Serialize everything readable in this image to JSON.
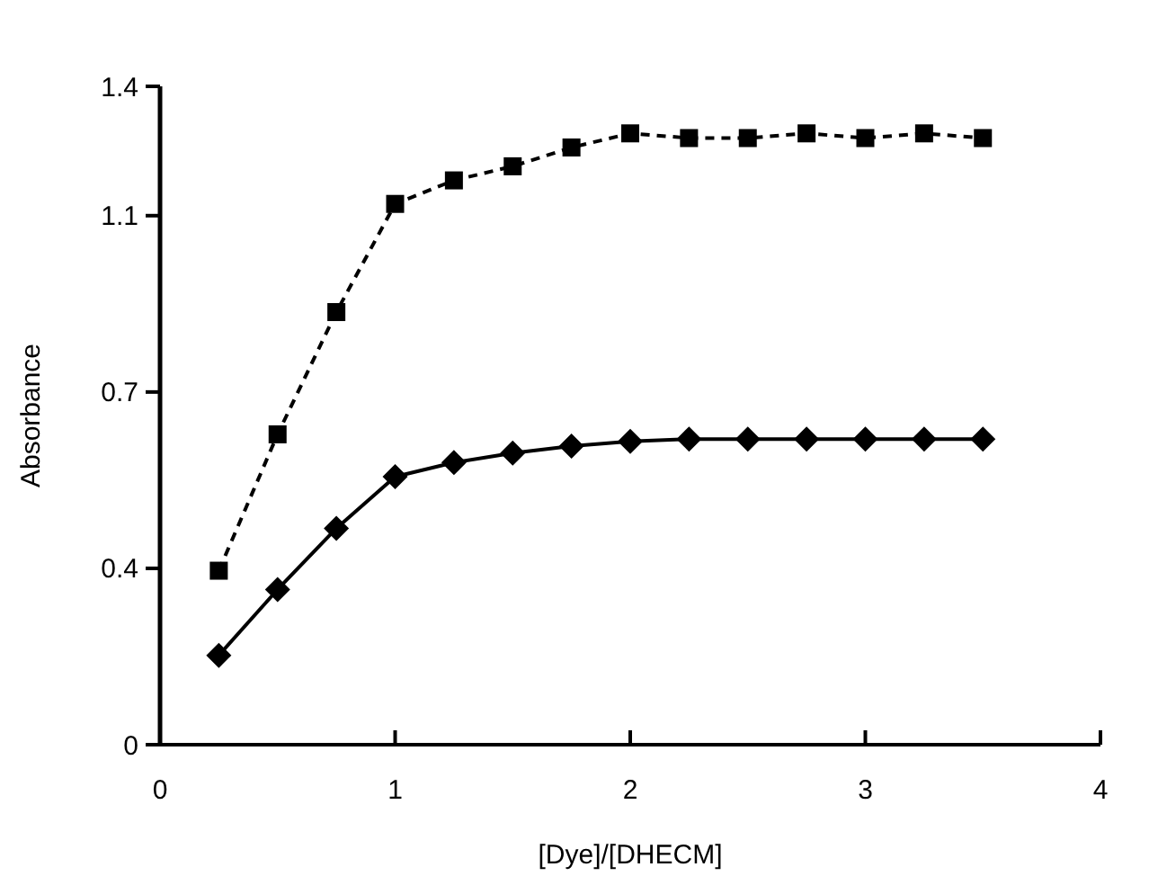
{
  "chart_data": {
    "type": "line",
    "xlabel": "[Dye]/[DHECM]",
    "ylabel": "Absorbance",
    "x": [
      0.25,
      0.5,
      0.75,
      1,
      1.25,
      1.5,
      1.75,
      2,
      2.25,
      2.5,
      2.75,
      3,
      3.25,
      3.5
    ],
    "series": [
      {
        "color": "#000000",
        "marker": "square",
        "line_style": "dashed",
        "values": [
          0.37,
          0.66,
          0.92,
          1.15,
          1.2,
          1.23,
          1.27,
          1.3,
          1.29,
          1.29,
          1.3,
          1.29,
          1.3,
          1.29
        ]
      },
      {
        "color": "#000000",
        "marker": "diamond",
        "line_style": "solid",
        "values": [
          0.19,
          0.33,
          0.46,
          0.57,
          0.6,
          0.62,
          0.635,
          0.645,
          0.65,
          0.65,
          0.65,
          0.65,
          0.65,
          0.65
        ]
      }
    ],
    "xlim": [
      0,
      4
    ],
    "xticks": [
      0,
      1,
      2,
      3,
      4
    ],
    "ylim": [
      0,
      1.4
    ],
    "yticks": [
      0,
      {
        "value": 0.375,
        "label": "0.4"
      },
      {
        "value": 0.75,
        "label": "0.7"
      },
      {
        "value": 1.125,
        "label": "1.1"
      },
      1.4
    ],
    "grid": false
  }
}
